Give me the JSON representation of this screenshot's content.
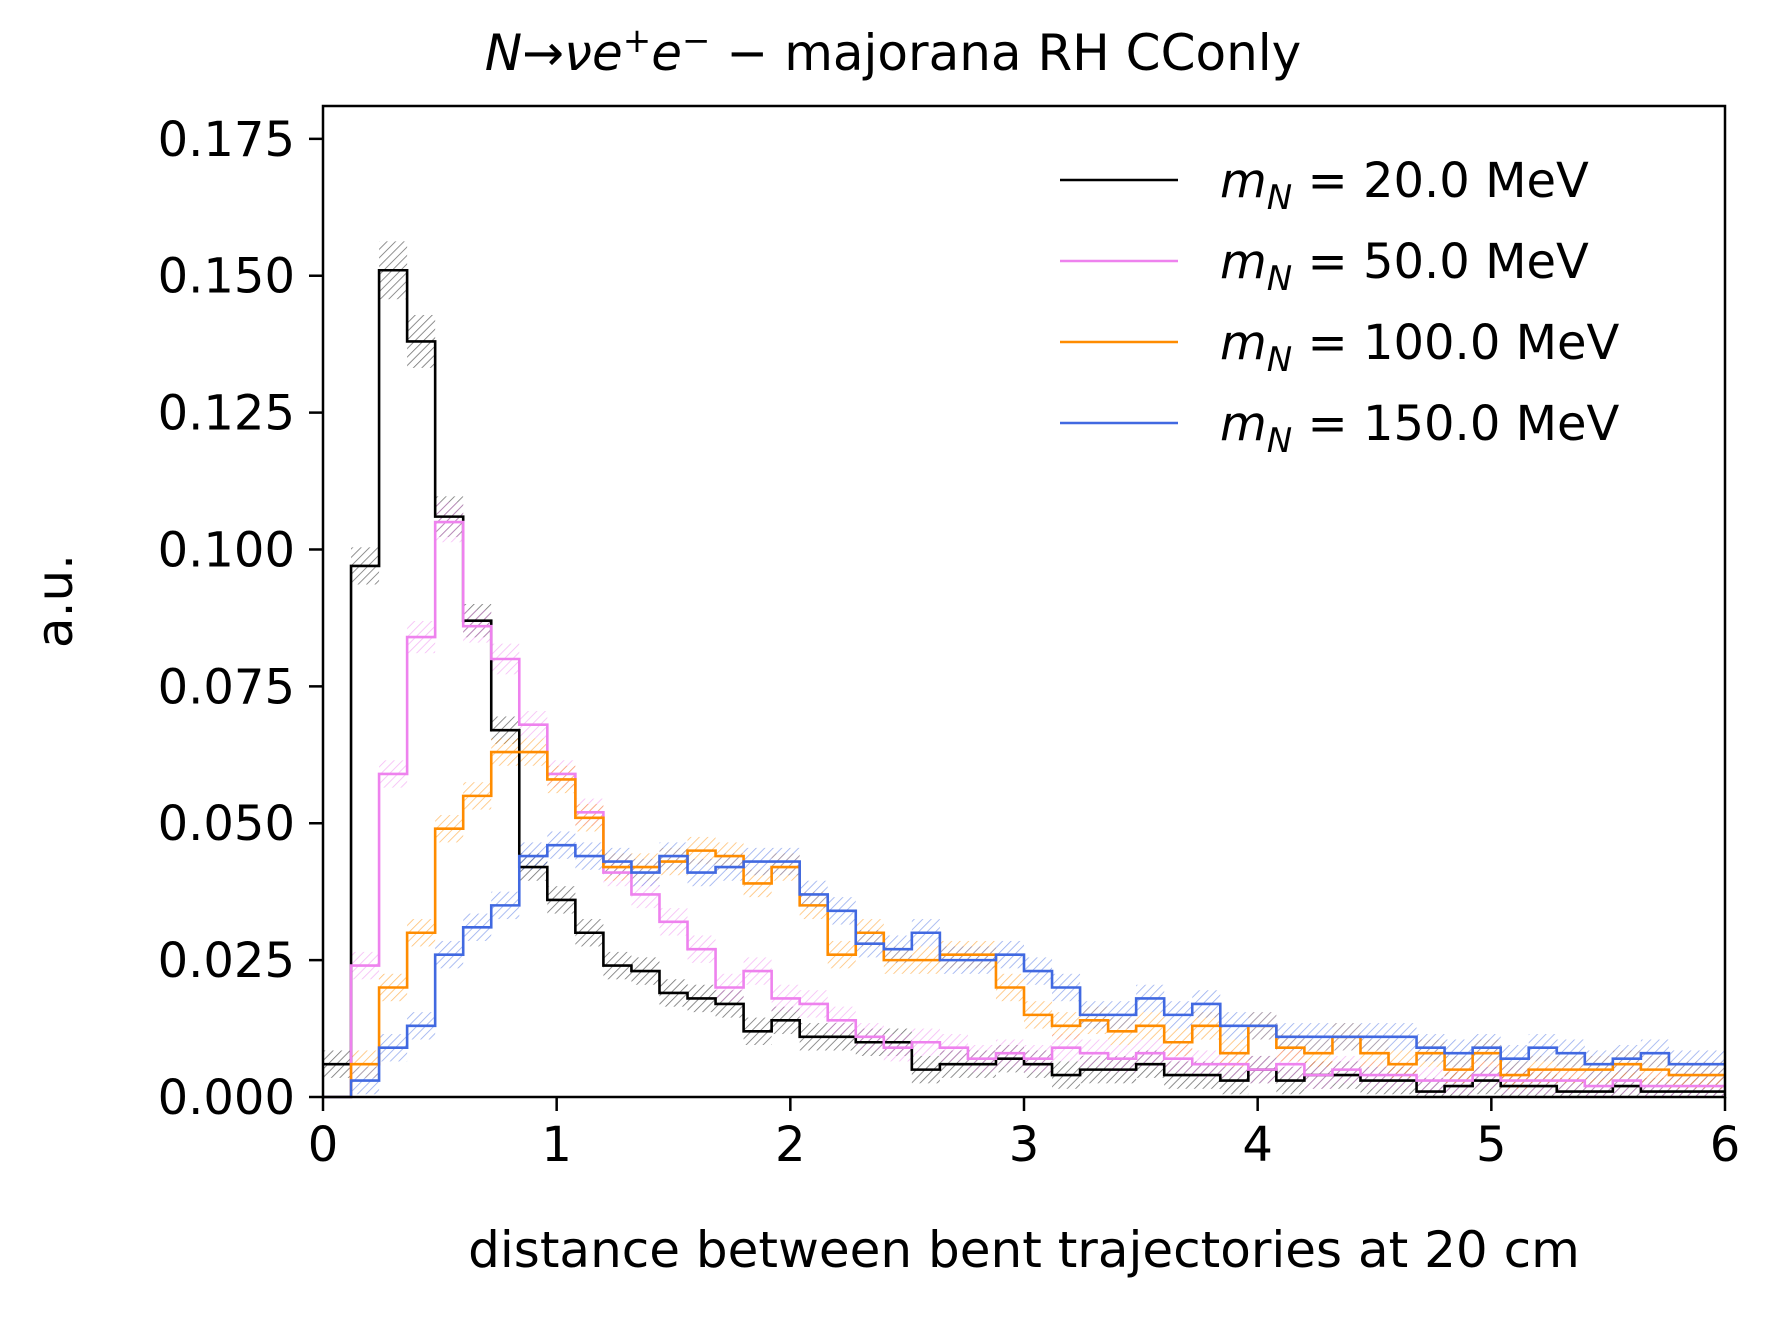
{
  "chart_data": {
    "type": "histogram-step",
    "title": "N→νe⁺e⁻ − majorana RH CConly",
    "title_parts": {
      "N": "N",
      "arrow": "→",
      "nu": "ν",
      "e": "e",
      "plus": "+",
      "e2": "e",
      "minus": "−",
      "rest": " − majorana RH CConly"
    },
    "xlabel": "distance between bent trajectories at 20 cm",
    "ylabel": "a.u.",
    "xlim": [
      0,
      6
    ],
    "ylim": [
      0,
      0.181
    ],
    "xticks": [
      0,
      1,
      2,
      3,
      4,
      5,
      6
    ],
    "xtick_labels": [
      "0",
      "1",
      "2",
      "3",
      "4",
      "5",
      "6"
    ],
    "yticks": [
      0.0,
      0.025,
      0.05,
      0.075,
      0.1,
      0.125,
      0.15,
      0.175
    ],
    "ytick_labels": [
      "0.000",
      "0.025",
      "0.050",
      "0.075",
      "0.100",
      "0.125",
      "0.150",
      "0.175"
    ],
    "bin_edges_start": 0,
    "bin_width": 0.12,
    "n_bins": 50,
    "legend_position": "top-right",
    "grid": false,
    "series": [
      {
        "name": "m_N = 20.0 MeV",
        "label_sym": "m",
        "label_sub": "N",
        "label_rest": " = 20.0 MeV",
        "color": "#000000",
        "values": [
          0.006,
          0.097,
          0.151,
          0.138,
          0.106,
          0.087,
          0.067,
          0.042,
          0.036,
          0.03,
          0.024,
          0.023,
          0.019,
          0.018,
          0.017,
          0.012,
          0.014,
          0.011,
          0.011,
          0.01,
          0.01,
          0.005,
          0.006,
          0.006,
          0.007,
          0.006,
          0.004,
          0.005,
          0.005,
          0.006,
          0.004,
          0.004,
          0.003,
          0.005,
          0.003,
          0.004,
          0.004,
          0.003,
          0.003,
          0.001,
          0.002,
          0.003,
          0.002,
          0.002,
          0.001,
          0.001,
          0.002,
          0.001,
          0.001,
          0.001
        ]
      },
      {
        "name": "m_N = 50.0 MeV",
        "label_sym": "m",
        "label_sub": "N",
        "label_rest": " = 50.0 MeV",
        "color": "#ee82ee",
        "values": [
          0.0,
          0.024,
          0.059,
          0.084,
          0.105,
          0.086,
          0.08,
          0.068,
          0.059,
          0.052,
          0.041,
          0.037,
          0.032,
          0.027,
          0.02,
          0.023,
          0.018,
          0.017,
          0.014,
          0.011,
          0.009,
          0.01,
          0.009,
          0.007,
          0.008,
          0.007,
          0.009,
          0.008,
          0.007,
          0.008,
          0.007,
          0.006,
          0.006,
          0.005,
          0.006,
          0.004,
          0.005,
          0.004,
          0.004,
          0.003,
          0.003,
          0.004,
          0.003,
          0.003,
          0.003,
          0.002,
          0.003,
          0.002,
          0.002,
          0.002
        ]
      },
      {
        "name": "m_N = 100.0 MeV",
        "label_sym": "m",
        "label_sub": "N",
        "label_rest": " = 100.0 MeV",
        "color": "#ff8c00",
        "values": [
          0.0,
          0.006,
          0.02,
          0.03,
          0.049,
          0.055,
          0.063,
          0.063,
          0.058,
          0.051,
          0.042,
          0.042,
          0.043,
          0.045,
          0.044,
          0.039,
          0.042,
          0.035,
          0.026,
          0.03,
          0.025,
          0.025,
          0.026,
          0.026,
          0.02,
          0.015,
          0.013,
          0.014,
          0.012,
          0.013,
          0.01,
          0.013,
          0.008,
          0.013,
          0.009,
          0.008,
          0.011,
          0.008,
          0.006,
          0.008,
          0.005,
          0.008,
          0.004,
          0.005,
          0.005,
          0.005,
          0.006,
          0.005,
          0.004,
          0.004
        ]
      },
      {
        "name": "m_N = 150.0 MeV",
        "label_sym": "m",
        "label_sub": "N",
        "label_rest": " = 150.0 MeV",
        "color": "#4169e1",
        "values": [
          0.0,
          0.003,
          0.009,
          0.013,
          0.026,
          0.031,
          0.035,
          0.044,
          0.046,
          0.044,
          0.043,
          0.041,
          0.044,
          0.041,
          0.042,
          0.043,
          0.043,
          0.037,
          0.034,
          0.028,
          0.027,
          0.03,
          0.025,
          0.025,
          0.026,
          0.023,
          0.02,
          0.015,
          0.015,
          0.018,
          0.015,
          0.017,
          0.013,
          0.013,
          0.011,
          0.011,
          0.011,
          0.011,
          0.011,
          0.009,
          0.008,
          0.009,
          0.007,
          0.009,
          0.008,
          0.006,
          0.007,
          0.008,
          0.006,
          0.006
        ]
      }
    ]
  }
}
